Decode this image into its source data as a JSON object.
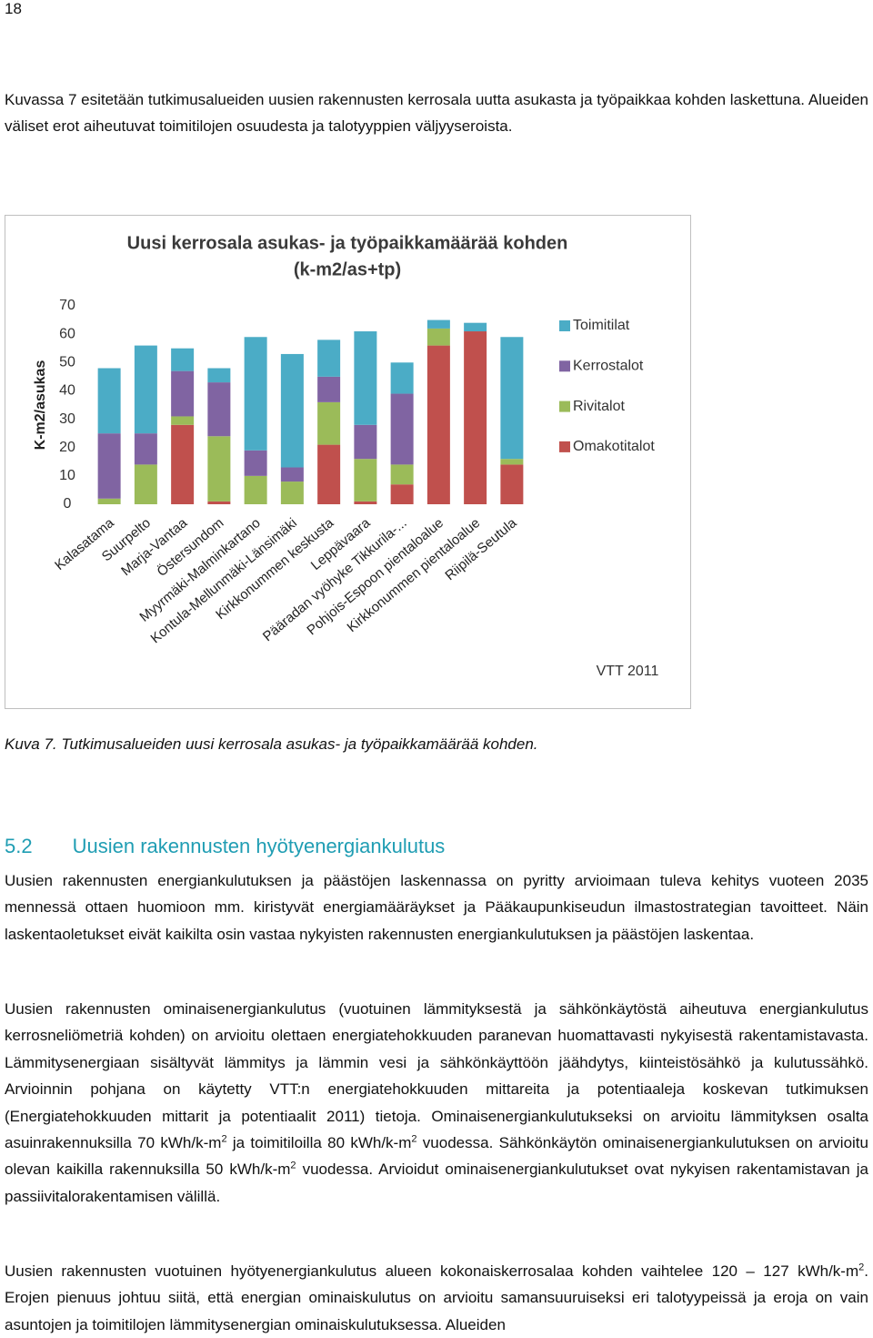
{
  "page_number": "18",
  "intro": "Kuvassa 7 esitetään tutkimusalueiden uusien rakennusten kerrosala uutta asukasta ja työpaikkaa kohden laskettuna. Alueiden väliset erot aiheutuvat toimitilojen osuudesta ja talotyyppien väljyyseroista.",
  "chart_data": {
    "type": "stacked_bar",
    "title": "Uusi kerrosala asukas- ja työpaikkamäärää kohden",
    "subtitle": "(k-m2/as+tp)",
    "y_label": "K-m2/asukas",
    "source_note": "VTT 2011",
    "categories": [
      "Kalasatama",
      "Suurpelto",
      "Marja-Vantaa",
      "Östersundom",
      "Myyrmäki-Malminkartano",
      "Kontula-Mellunmäki-Länsimäki",
      "Kirkkonummen keskusta",
      "Leppävaara",
      "Pääradan vyöhyke Tikkurila-...",
      "Pohjois-Espoon pientaloalue",
      "Kirkkonummen pientaloalue",
      "Riipilä-Seutula"
    ],
    "series": [
      {
        "name": "Omakotitalot",
        "color": "#c0504d",
        "values": [
          0,
          0,
          28,
          1,
          0,
          0,
          21,
          1,
          7,
          56,
          61,
          14
        ]
      },
      {
        "name": "Rivitalot",
        "color": "#9bbb59",
        "values": [
          2,
          14,
          3,
          23,
          10,
          8,
          15,
          15,
          7,
          6,
          0,
          2
        ]
      },
      {
        "name": "Kerrostalot",
        "color": "#8064a2",
        "values": [
          23,
          11,
          16,
          19,
          9,
          5,
          9,
          12,
          25,
          0,
          0,
          0
        ]
      },
      {
        "name": "Toimitilat",
        "color": "#4bacc6",
        "values": [
          23,
          31,
          8,
          5,
          40,
          40,
          13,
          33,
          11,
          3,
          3,
          43
        ]
      }
    ],
    "ylim": [
      0,
      70
    ],
    "yticks": [
      0,
      10,
      20,
      30,
      40,
      50,
      60,
      70
    ],
    "grid": false,
    "legend": "right"
  },
  "caption": "Kuva 7. Tutkimusalueiden uusi kerrosala asukas- ja työpaikkamäärää kohden.",
  "section": {
    "number": "5.2",
    "title": "Uusien rakennusten hyötyenergiankulutus"
  },
  "paragraphs": [
    [
      {
        "text": "Uusien rakennusten energiankulutuksen ja päästöjen laskennassa on pyritty arvioimaan tuleva kehitys vuoteen 2035 mennessä ottaen huomioon mm. kiristyvät energiamääräykset ja Pääkaupunkiseudun ilmastostrategian tavoitteet. Näin laskentaoletukset eivät kaikilta osin vastaa nykyisten rakennusten energiankulutuksen ja päästöjen laskentaa."
      }
    ],
    [
      {
        "text": "Uusien rakennusten ominaisenergiankulutus (vuotuinen lämmityksestä ja sähkönkäytöstä aiheutuva energiankulutus kerrosneliömetriä kohden) on arvioitu olettaen energiatehokkuuden paranevan huomattavasti nykyisestä rakentamistavasta. Lämmitysenergiaan sisältyvät lämmitys ja lämmin vesi ja sähkönkäyttöön jäähdytys, kiinteistösähkö ja kulutussähkö. Arvioinnin pohjana on käytetty VTT:n energiatehokkuuden mittareita ja potentiaaleja koskevan tutkimuksen (Energiatehokkuuden mittarit ja potentiaalit 2011) tietoja. Ominaisenergiankulutukseksi on arvioitu lämmityksen osalta asuinrakennuksilla 70 kWh/k-m"
      },
      {
        "sup": "2"
      },
      {
        "text": " ja toimitiloilla 80 kWh/k-m"
      },
      {
        "sup": "2"
      },
      {
        "text": " vuodessa. Sähkönkäytön ominaisenergiankulutuksen on arvioitu olevan kaikilla rakennuksilla 50 kWh/k-m"
      },
      {
        "sup": "2"
      },
      {
        "text": " vuodessa. Arvioidut ominaisenergiankulutukset ovat nykyisen rakentamistavan ja passiivitalorakentamisen välillä."
      }
    ],
    [
      {
        "text": "Uusien rakennusten vuotuinen hyötyenergiankulutus alueen kokonaiskerrosalaa kohden vaihtelee 120 – 127 kWh/k-m"
      },
      {
        "sup": "2"
      },
      {
        "text": ". Erojen pienuus johtuu siitä, että energian ominaiskulutus on arvioitu samansuuruiseksi eri talotyypeissä ja eroja on vain asuntojen ja toimitilojen lämmitysenergian ominaiskulutuksessa. Alueiden"
      }
    ]
  ]
}
